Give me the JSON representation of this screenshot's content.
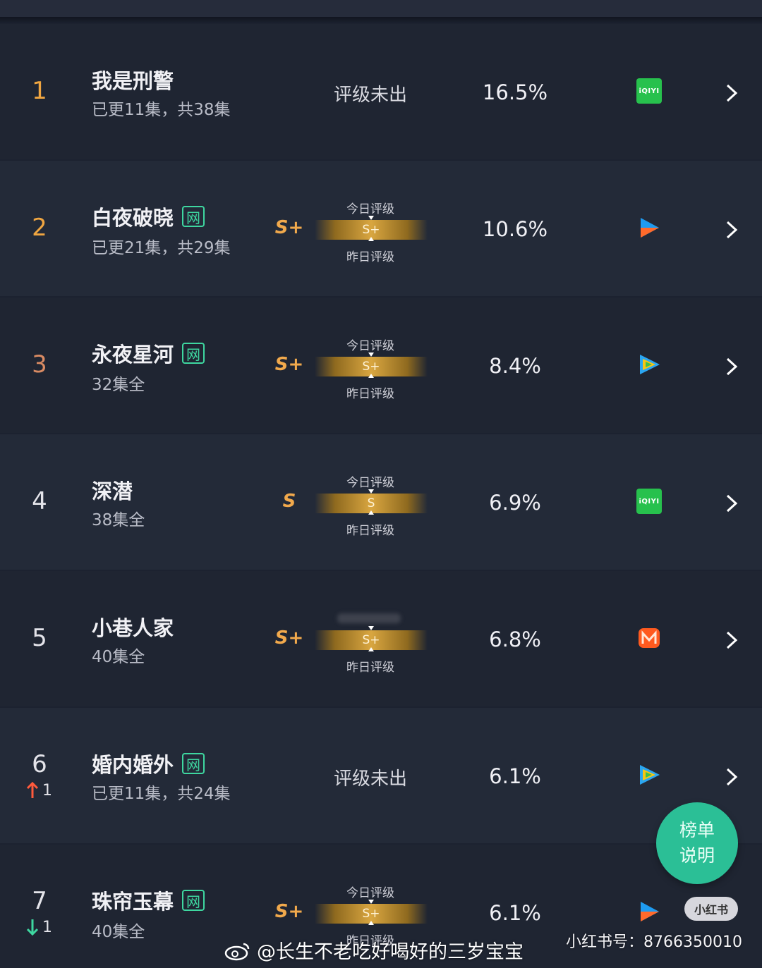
{
  "rows": [
    {
      "rank": "1",
      "title": "我是刑警",
      "net": false,
      "subtitle": "已更11集，共38集",
      "rating_text": "评级未出",
      "percent": "16.5%",
      "platform": "iqiyi-icon",
      "platform_label": "iQIYI"
    },
    {
      "rank": "2",
      "title": "白夜破晓",
      "net": true,
      "subtitle": "已更21集，共29集",
      "grade": "S+",
      "today_label": "今日评级",
      "bar_grade": "S+",
      "yesterday_label": "昨日评级",
      "percent": "10.6%",
      "platform": "youku-icon"
    },
    {
      "rank": "3",
      "title": "永夜星河",
      "net": true,
      "subtitle": "32集全",
      "grade": "S+",
      "today_label": "今日评级",
      "bar_grade": "S+",
      "yesterday_label": "昨日评级",
      "percent": "8.4%",
      "platform": "tencent-video-icon"
    },
    {
      "rank": "4",
      "title": "深潜",
      "net": false,
      "subtitle": "38集全",
      "grade": "S",
      "today_label": "今日评级",
      "bar_grade": "S",
      "yesterday_label": "昨日评级",
      "percent": "6.9%",
      "platform": "iqiyi-icon",
      "platform_label": "iQIYI"
    },
    {
      "rank": "5",
      "title": "小巷人家",
      "net": false,
      "subtitle": "40集全",
      "grade": "S+",
      "bar_grade": "S+",
      "yesterday_label": "昨日评级",
      "percent": "6.8%",
      "platform": "mango-tv-icon"
    },
    {
      "rank": "6",
      "title": "婚内婚外",
      "net": true,
      "subtitle": "已更11集，共24集",
      "rating_text": "评级未出",
      "percent": "6.1%",
      "platform": "tencent-video-icon",
      "change": "1",
      "change_dir": "up"
    },
    {
      "rank": "7",
      "title": "珠帘玉幕",
      "net": true,
      "subtitle": "40集全",
      "grade": "S+",
      "today_label": "今日评级",
      "bar_grade": "S+",
      "yesterday_label": "昨日评级",
      "percent": "6.1%",
      "platform": "youku-icon",
      "change": "1",
      "change_dir": "down"
    }
  ],
  "net_badge": "网",
  "fab": {
    "line1": "榜单",
    "line2": "说明"
  },
  "xhs_badge": "小红书",
  "caption": "@长生不老吃好喝好的三岁宝宝",
  "xhs_id": "小红书号：8766350010",
  "colors": {
    "accent_gold": "#f0a641",
    "net_green": "#3ed7a0",
    "fab_green": "#2bbf96",
    "up_red": "#ff5a3c",
    "down_green": "#3ed7a0"
  }
}
